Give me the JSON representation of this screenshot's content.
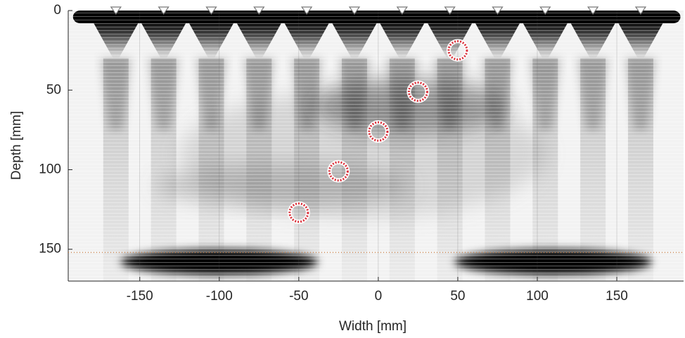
{
  "chart_data": {
    "type": "scatter",
    "xlabel": "Width [mm]",
    "ylabel": "Depth [mm]",
    "xlim": [
      -195,
      192
    ],
    "ylim": [
      0,
      170
    ],
    "xticks": [
      -150,
      -100,
      -50,
      0,
      50,
      100,
      150
    ],
    "yticks": [
      0,
      50,
      100,
      150
    ],
    "y_reversed": true,
    "grid": true,
    "transducers": {
      "x": [
        -165,
        -135,
        -105,
        -75,
        -45,
        -15,
        15,
        45,
        75,
        105,
        135,
        165
      ],
      "y": 0
    },
    "targets": {
      "x": [
        50,
        25,
        0,
        -25,
        -50
      ],
      "y": [
        25,
        51,
        76,
        101,
        127
      ],
      "color": "#d9303a"
    },
    "reference_depth": 152,
    "reference_color": "#c8783c"
  }
}
